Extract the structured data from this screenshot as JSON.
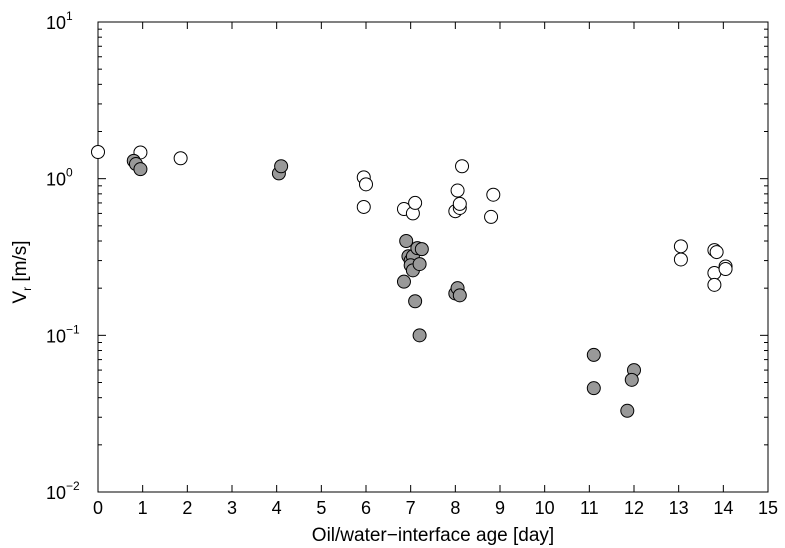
{
  "chart_data": {
    "type": "scatter",
    "xlabel": "Oil/water−interface age [day]",
    "ylabel_main": "V",
    "ylabel_sub": "r",
    "ylabel_unit": " [m/s]",
    "xlim": [
      0,
      15
    ],
    "ylim": [
      0.01,
      10
    ],
    "y_scale": "log",
    "grid": false,
    "x_ticks": [
      "0",
      "1",
      "2",
      "3",
      "4",
      "5",
      "6",
      "7",
      "8",
      "9",
      "10",
      "11",
      "12",
      "13",
      "14",
      "15"
    ],
    "y_ticks": [
      {
        "base": "10",
        "exp": "1"
      },
      {
        "base": "10",
        "exp": "0"
      },
      {
        "base": "10",
        "exp": "−1"
      },
      {
        "base": "10",
        "exp": "−2"
      }
    ],
    "series": [
      {
        "marker": "open-circle",
        "fill": "#ffffff",
        "points": [
          [
            0.0,
            1.48
          ],
          [
            0.95,
            1.47
          ],
          [
            1.85,
            1.35
          ],
          [
            5.95,
            1.02
          ],
          [
            6.0,
            0.92
          ],
          [
            5.95,
            0.66
          ],
          [
            6.85,
            0.64
          ],
          [
            7.05,
            0.6
          ],
          [
            7.1,
            0.7
          ],
          [
            8.0,
            0.62
          ],
          [
            8.1,
            0.65
          ],
          [
            8.1,
            0.69
          ],
          [
            8.05,
            0.84
          ],
          [
            8.15,
            1.2
          ],
          [
            8.8,
            0.57
          ],
          [
            8.85,
            0.79
          ],
          [
            13.05,
            0.37
          ],
          [
            13.05,
            0.305
          ],
          [
            13.8,
            0.35
          ],
          [
            13.85,
            0.34
          ],
          [
            13.8,
            0.25
          ],
          [
            13.8,
            0.21
          ],
          [
            14.05,
            0.275
          ],
          [
            14.05,
            0.265
          ]
        ]
      },
      {
        "marker": "filled-circle",
        "fill": "#999999",
        "points": [
          [
            0.8,
            1.3
          ],
          [
            0.85,
            1.24
          ],
          [
            0.95,
            1.15
          ],
          [
            4.05,
            1.08
          ],
          [
            4.1,
            1.2
          ],
          [
            6.9,
            0.4
          ],
          [
            6.95,
            0.32
          ],
          [
            7.0,
            0.3
          ],
          [
            7.05,
            0.32
          ],
          [
            7.0,
            0.28
          ],
          [
            7.05,
            0.26
          ],
          [
            7.15,
            0.36
          ],
          [
            7.25,
            0.355
          ],
          [
            7.2,
            0.285
          ],
          [
            6.85,
            0.22
          ],
          [
            7.1,
            0.165
          ],
          [
            7.2,
            0.1
          ],
          [
            8.0,
            0.185
          ],
          [
            8.05,
            0.2
          ],
          [
            8.1,
            0.18
          ],
          [
            11.1,
            0.075
          ],
          [
            11.1,
            0.046
          ],
          [
            11.85,
            0.033
          ],
          [
            12.0,
            0.06
          ],
          [
            11.95,
            0.052
          ]
        ]
      }
    ],
    "axis_color": "#000000",
    "marker_stroke": "#000000"
  }
}
